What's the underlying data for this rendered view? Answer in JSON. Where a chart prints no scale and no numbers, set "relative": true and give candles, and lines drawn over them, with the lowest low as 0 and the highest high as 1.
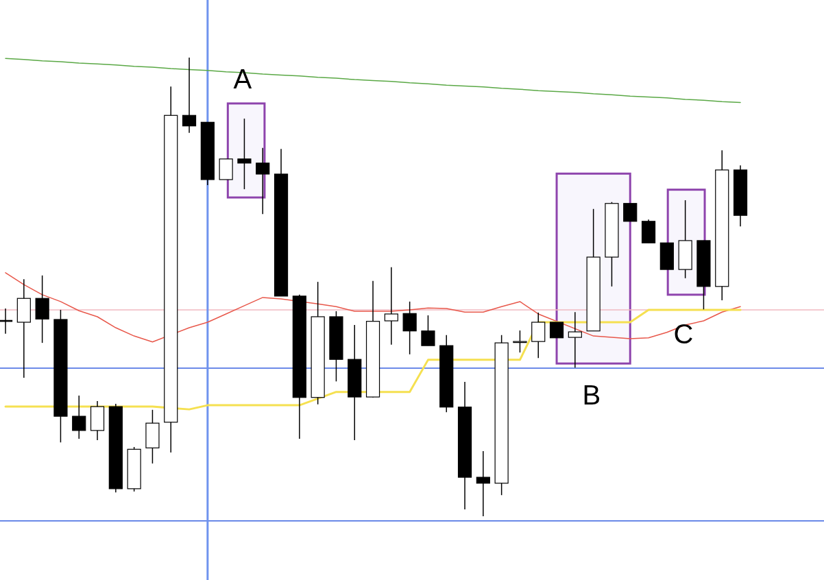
{
  "chart_data": {
    "type": "candlestick",
    "relative": true,
    "categories": [
      null,
      null,
      null,
      null,
      null,
      null,
      null,
      null,
      null,
      null,
      null,
      null,
      null,
      null,
      null,
      null,
      null,
      null,
      null,
      null,
      null,
      null,
      null,
      null,
      null,
      null,
      null,
      null,
      null,
      null,
      null,
      null,
      null,
      null,
      null,
      null,
      null,
      null,
      null,
      null,
      null
    ],
    "ohlc": [
      [
        0.427,
        0.453,
        0.398,
        0.426
      ],
      [
        0.423,
        0.517,
        0.302,
        0.475
      ],
      [
        0.475,
        0.525,
        0.378,
        0.43
      ],
      [
        0.429,
        0.45,
        0.161,
        0.218
      ],
      [
        0.218,
        0.263,
        0.169,
        0.187
      ],
      [
        0.187,
        0.251,
        0.166,
        0.239
      ],
      [
        0.239,
        0.245,
        0.052,
        0.06
      ],
      [
        0.06,
        0.151,
        0.054,
        0.146
      ],
      [
        0.149,
        0.232,
        0.115,
        0.203
      ],
      [
        0.205,
        0.937,
        0.139,
        0.874
      ],
      [
        0.874,
        1.0,
        0.836,
        0.851
      ],
      [
        0.859,
        0.859,
        0.722,
        0.734
      ],
      [
        0.734,
        0.779,
        0.734,
        0.779
      ],
      [
        0.779,
        0.867,
        0.713,
        0.77
      ],
      [
        0.77,
        0.803,
        0.659,
        0.746
      ],
      [
        0.746,
        0.801,
        0.48,
        0.48
      ],
      [
        0.48,
        0.483,
        0.169,
        0.259
      ],
      [
        0.259,
        0.511,
        0.244,
        0.435
      ],
      [
        0.435,
        0.447,
        0.294,
        0.342
      ],
      [
        0.342,
        0.417,
        0.166,
        0.26
      ],
      [
        0.26,
        0.513,
        0.259,
        0.425
      ],
      [
        0.426,
        0.543,
        0.374,
        0.441
      ],
      [
        0.442,
        0.468,
        0.353,
        0.404
      ],
      [
        0.404,
        0.438,
        0.372,
        0.372
      ],
      [
        0.372,
        0.395,
        0.227,
        0.238
      ],
      [
        0.238,
        0.293,
        0.015,
        0.085
      ],
      [
        0.085,
        0.142,
        0,
        0.072
      ],
      [
        0.072,
        0.395,
        0.046,
        0.378
      ],
      [
        0.381,
        0.405,
        0.357,
        0.381
      ],
      [
        0.381,
        0.444,
        0.345,
        0.423
      ],
      [
        0.423,
        0.423,
        0.389,
        0.389
      ],
      [
        0.39,
        0.445,
        0.324,
        0.402
      ],
      [
        0.404,
        0.67,
        0.404,
        0.565
      ],
      [
        0.565,
        0.685,
        0.501,
        0.682
      ],
      [
        0.682,
        0.682,
        0.643,
        0.643
      ],
      [
        0.643,
        0.647,
        0.596,
        0.596
      ],
      [
        0.596,
        0.596,
        0.538,
        0.538
      ],
      [
        0.538,
        0.689,
        0.519,
        0.601
      ],
      [
        0.601,
        0.601,
        0.451,
        0.501
      ],
      [
        0.501,
        0.798,
        0.471,
        0.755
      ],
      [
        0.755,
        0.765,
        0.632,
        0.656
      ]
    ],
    "series": [
      {
        "type": "line",
        "color": "#e8574a",
        "values": [
          0.531,
          0.505,
          0.483,
          0.468,
          0.448,
          0.435,
          0.411,
          0.393,
          0.38,
          null,
          0.411,
          0.423,
          0.441,
          0.459,
          0.477,
          0.474,
          null,
          0.463,
          0.457,
          0.447,
          0.447,
          0.447,
          0.45,
          0.454,
          0.453,
          0.445,
          0.445,
          0.457,
          0.468,
          0.441,
          null,
          null,
          0.393,
          0.39,
          0.387,
          0.389,
          0.401,
          0.417,
          0.426,
          0.445,
          0.457
        ]
      },
      {
        "type": "line",
        "color": "#f5e050",
        "values": [
          0.239,
          0.239,
          0.239,
          null,
          0.239,
          0.239,
          0.239,
          0.239,
          0.239,
          null,
          0.233,
          0.242,
          0.242,
          0.242,
          0.242,
          0.242,
          0.242,
          null,
          0.271,
          null,
          null,
          0.271,
          0.271,
          0.341,
          null,
          0.341,
          0.341,
          null,
          0.341,
          0.423,
          0.423,
          0.423,
          null,
          0.423,
          0.423,
          0.45,
          0.45,
          0.45,
          0.45,
          0.45,
          0.45
        ]
      },
      {
        "type": "line",
        "color": "#5aa845",
        "values": [
          0.998,
          0.996,
          0.993,
          0.991,
          0.988,
          0.986,
          0.984,
          0.981,
          0.979,
          0.976,
          0.974,
          0.972,
          0.969,
          0.967,
          0.964,
          0.962,
          0.96,
          0.957,
          0.955,
          0.952,
          0.95,
          0.948,
          0.945,
          0.943,
          0.94,
          0.938,
          0.936,
          0.933,
          0.931,
          0.928,
          0.926,
          0.924,
          0.921,
          0.919,
          0.916,
          0.914,
          0.912,
          0.909,
          0.907,
          0.904,
          0.902
        ]
      }
    ],
    "ref_lines": [
      {
        "axis": "y",
        "value": 0.323,
        "color": "#3b63e0"
      },
      {
        "axis": "y",
        "value": -0.01,
        "color": "#3b63e0"
      },
      {
        "axis": "y",
        "value": 0.45,
        "color": "#f0b8c0"
      }
    ],
    "annotations": [
      "A",
      "B",
      "C"
    ]
  }
}
